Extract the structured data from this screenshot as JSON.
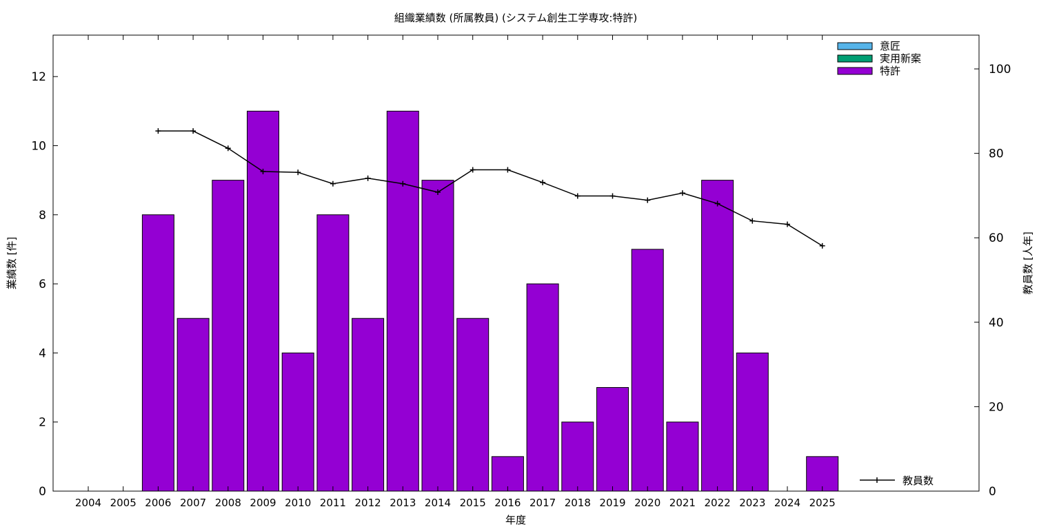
{
  "chart_data": {
    "type": "bar",
    "title": "組織業績数 (所属教員) (システム創生工学専攻:特許)",
    "xlabel": "年度",
    "ylabel": "業績数 [件]",
    "y2label": "教員数 [人年]",
    "categories": [
      "2004",
      "2005",
      "2006",
      "2007",
      "2008",
      "2009",
      "2010",
      "2011",
      "2012",
      "2013",
      "2014",
      "2015",
      "2016",
      "2017",
      "2018",
      "2019",
      "2020",
      "2021",
      "2022",
      "2023",
      "2024",
      "2025"
    ],
    "ylim": [
      0,
      13.2
    ],
    "yticks": [
      0,
      2,
      4,
      6,
      8,
      10,
      12
    ],
    "y2lim": [
      0,
      108
    ],
    "y2ticks": [
      0,
      20,
      40,
      60,
      80,
      100
    ],
    "grid": false,
    "legend_position": "top-right",
    "series": [
      {
        "name": "意匠",
        "type": "bar",
        "color": "#56b4e9",
        "values": [
          0,
          0,
          0,
          0,
          0,
          0,
          0,
          0,
          0,
          0,
          0,
          0,
          0,
          0,
          0,
          0,
          0,
          0,
          0,
          0,
          0,
          0
        ]
      },
      {
        "name": "実用新案",
        "type": "bar",
        "color": "#009e73",
        "values": [
          0,
          0,
          0,
          0,
          0,
          0,
          0,
          0,
          0,
          0,
          0,
          0,
          0,
          0,
          0,
          0,
          0,
          0,
          0,
          0,
          0,
          0
        ]
      },
      {
        "name": "特許",
        "type": "bar",
        "color": "#9400d3",
        "values": [
          0,
          0,
          8,
          5,
          9,
          11,
          4,
          8,
          5,
          11,
          9,
          5,
          1,
          6,
          2,
          3,
          7,
          2,
          9,
          4,
          0,
          1
        ]
      },
      {
        "name": "教員数",
        "type": "line",
        "axis": "y2",
        "color": "#000000",
        "legend_position": "bottom-right",
        "values": [
          null,
          null,
          85.3,
          85.3,
          81.2,
          75.7,
          75.5,
          72.8,
          74.1,
          72.8,
          70.8,
          76.1,
          76.1,
          73.1,
          69.9,
          69.9,
          68.9,
          70.6,
          68.1,
          64.0,
          63.2,
          58.1
        ]
      }
    ]
  }
}
